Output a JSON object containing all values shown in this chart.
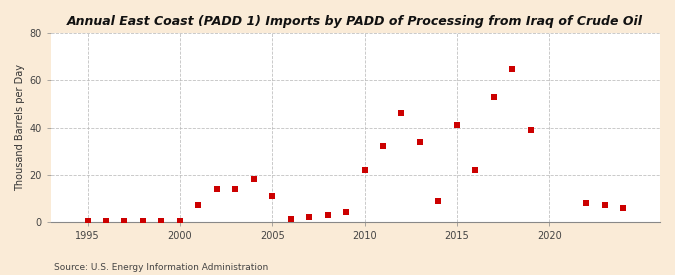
{
  "title": "Annual East Coast (PADD 1) Imports by PADD of Processing from Iraq of Crude Oil",
  "ylabel": "Thousand Barrels per Day",
  "source": "Source: U.S. Energy Information Administration",
  "background_color": "#faebd7",
  "plot_background_color": "#ffffff",
  "marker_color": "#cc0000",
  "marker": "s",
  "marker_size": 4,
  "xlim": [
    1993,
    2026
  ],
  "ylim": [
    0,
    80
  ],
  "yticks": [
    0,
    20,
    40,
    60,
    80
  ],
  "xticks": [
    1995,
    2000,
    2005,
    2010,
    2015,
    2020
  ],
  "grid_color": "#bbbbbb",
  "years": [
    1995,
    1996,
    1997,
    1998,
    1999,
    2000,
    2001,
    2002,
    2003,
    2004,
    2005,
    2006,
    2007,
    2008,
    2009,
    2010,
    2011,
    2012,
    2013,
    2014,
    2015,
    2016,
    2017,
    2018,
    2019,
    2022,
    2023,
    2024
  ],
  "values": [
    0.5,
    0.5,
    0.5,
    0.5,
    0.5,
    0.5,
    7,
    14,
    14,
    18,
    11,
    1,
    2,
    3,
    4,
    22,
    32,
    46,
    34,
    9,
    41,
    22,
    53,
    65,
    39,
    8,
    7,
    6
  ]
}
